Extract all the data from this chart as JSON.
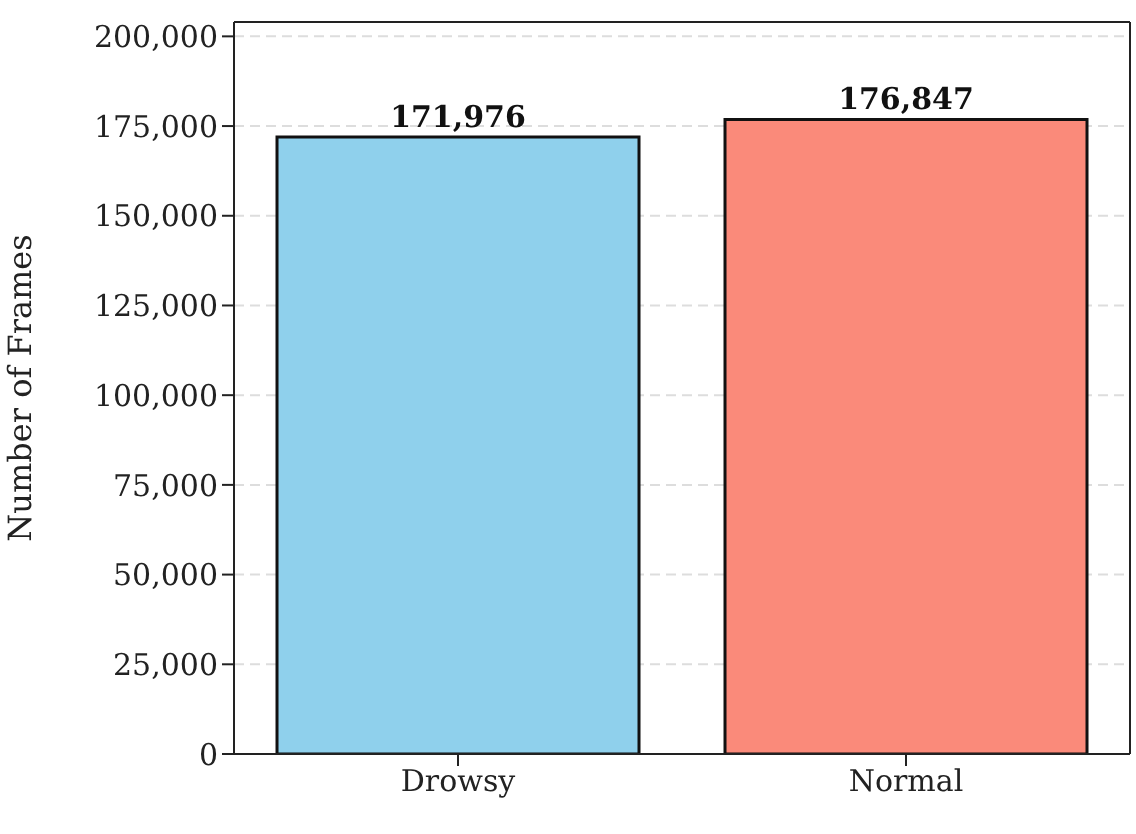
{
  "chart_data": {
    "type": "bar",
    "ylabel": "Number of Frames",
    "categories": [
      "Drowsy",
      "Normal"
    ],
    "values": [
      171976,
      176847
    ],
    "value_labels": [
      "171,976",
      "176,847"
    ],
    "colors": [
      "#8fd0ec",
      "#fa8a7a"
    ],
    "ylim": [
      0,
      204000
    ],
    "yticks": [
      0,
      {
        "value": 25000,
        "label": "25,000"
      },
      {
        "value": 50000,
        "label": "50,000"
      },
      {
        "value": 75000,
        "label": "75,000"
      },
      {
        "value": 100000,
        "label": "100,000"
      },
      {
        "value": 125000,
        "label": "125,000"
      },
      {
        "value": 150000,
        "label": "150,000"
      },
      {
        "value": 175000,
        "label": "175,000"
      },
      {
        "value": 200000,
        "label": "200,000"
      }
    ],
    "grid": "y"
  }
}
